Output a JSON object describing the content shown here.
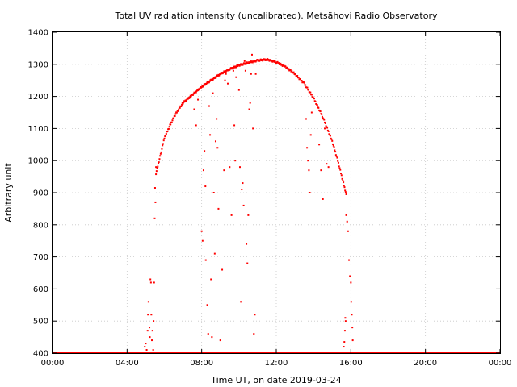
{
  "chart_data": {
    "type": "scatter",
    "title": "Total UV radiation intensity (uncalibrated). Metsähovi Radio Observatory",
    "xlabel": "Time UT, on date 2019-03-24",
    "ylabel": "Arbitrary unit",
    "x_unit": "hours UT",
    "xlim": [
      0,
      24
    ],
    "ylim": [
      400,
      1400
    ],
    "x_ticks": [
      {
        "value": 0,
        "label": "00:00"
      },
      {
        "value": 4,
        "label": "04:00"
      },
      {
        "value": 8,
        "label": "08:00"
      },
      {
        "value": 12,
        "label": "12:00"
      },
      {
        "value": 16,
        "label": "16:00"
      },
      {
        "value": 20,
        "label": "20:00"
      },
      {
        "value": 24,
        "label": "00:00"
      }
    ],
    "y_ticks": [
      400,
      500,
      600,
      700,
      800,
      900,
      1000,
      1100,
      1200,
      1300,
      1400
    ],
    "grid": true,
    "legend": "none",
    "series": [
      {
        "color": "#ff0000",
        "baseline": {
          "x_from": 0,
          "x_to": 24,
          "y": 400
        },
        "envelope": [
          {
            "x": 5.55,
            "y": 960
          },
          {
            "x": 5.8,
            "y": 1020
          },
          {
            "x": 6.0,
            "y": 1070
          },
          {
            "x": 6.3,
            "y": 1110
          },
          {
            "x": 6.6,
            "y": 1145
          },
          {
            "x": 7.0,
            "y": 1180
          },
          {
            "x": 7.5,
            "y": 1205
          },
          {
            "x": 8.0,
            "y": 1230
          },
          {
            "x": 8.5,
            "y": 1250
          },
          {
            "x": 9.0,
            "y": 1270
          },
          {
            "x": 9.5,
            "y": 1285
          },
          {
            "x": 10.0,
            "y": 1297
          },
          {
            "x": 10.5,
            "y": 1305
          },
          {
            "x": 11.0,
            "y": 1312
          },
          {
            "x": 11.5,
            "y": 1315
          },
          {
            "x": 12.0,
            "y": 1307
          },
          {
            "x": 12.5,
            "y": 1292
          },
          {
            "x": 13.0,
            "y": 1270
          },
          {
            "x": 13.5,
            "y": 1240
          },
          {
            "x": 14.0,
            "y": 1195
          },
          {
            "x": 14.5,
            "y": 1135
          },
          {
            "x": 15.0,
            "y": 1060
          },
          {
            "x": 15.3,
            "y": 1000
          },
          {
            "x": 15.6,
            "y": 930
          },
          {
            "x": 15.75,
            "y": 895
          }
        ],
        "scatter": [
          {
            "x": 4.95,
            "y": 420
          },
          {
            "x": 5.0,
            "y": 430
          },
          {
            "x": 5.05,
            "y": 410
          },
          {
            "x": 5.1,
            "y": 470
          },
          {
            "x": 5.12,
            "y": 520
          },
          {
            "x": 5.15,
            "y": 560
          },
          {
            "x": 5.2,
            "y": 480
          },
          {
            "x": 5.22,
            "y": 450
          },
          {
            "x": 5.25,
            "y": 630
          },
          {
            "x": 5.28,
            "y": 620
          },
          {
            "x": 5.3,
            "y": 520
          },
          {
            "x": 5.33,
            "y": 440
          },
          {
            "x": 5.36,
            "y": 470
          },
          {
            "x": 5.4,
            "y": 410
          },
          {
            "x": 5.42,
            "y": 500
          },
          {
            "x": 5.45,
            "y": 620
          },
          {
            "x": 5.48,
            "y": 820
          },
          {
            "x": 5.5,
            "y": 915
          },
          {
            "x": 5.52,
            "y": 870
          },
          {
            "x": 5.55,
            "y": 980
          },
          {
            "x": 7.6,
            "y": 1160
          },
          {
            "x": 7.7,
            "y": 1110
          },
          {
            "x": 7.8,
            "y": 1190
          },
          {
            "x": 8.0,
            "y": 780
          },
          {
            "x": 8.05,
            "y": 750
          },
          {
            "x": 8.1,
            "y": 970
          },
          {
            "x": 8.15,
            "y": 1030
          },
          {
            "x": 8.2,
            "y": 920
          },
          {
            "x": 8.22,
            "y": 690
          },
          {
            "x": 8.3,
            "y": 550
          },
          {
            "x": 8.35,
            "y": 460
          },
          {
            "x": 8.4,
            "y": 1170
          },
          {
            "x": 8.45,
            "y": 1080
          },
          {
            "x": 8.5,
            "y": 630
          },
          {
            "x": 8.55,
            "y": 450
          },
          {
            "x": 8.6,
            "y": 1210
          },
          {
            "x": 8.65,
            "y": 900
          },
          {
            "x": 8.7,
            "y": 710
          },
          {
            "x": 8.75,
            "y": 1060
          },
          {
            "x": 8.8,
            "y": 1130
          },
          {
            "x": 8.85,
            "y": 1040
          },
          {
            "x": 8.9,
            "y": 850
          },
          {
            "x": 9.0,
            "y": 440
          },
          {
            "x": 9.1,
            "y": 660
          },
          {
            "x": 9.2,
            "y": 970
          },
          {
            "x": 9.25,
            "y": 1250
          },
          {
            "x": 9.3,
            "y": 1270
          },
          {
            "x": 9.4,
            "y": 1240
          },
          {
            "x": 9.5,
            "y": 980
          },
          {
            "x": 9.6,
            "y": 830
          },
          {
            "x": 9.7,
            "y": 1280
          },
          {
            "x": 9.75,
            "y": 1110
          },
          {
            "x": 9.8,
            "y": 1000
          },
          {
            "x": 9.85,
            "y": 1260
          },
          {
            "x": 9.9,
            "y": 1295
          },
          {
            "x": 10.0,
            "y": 1220
          },
          {
            "x": 10.05,
            "y": 980
          },
          {
            "x": 10.1,
            "y": 560
          },
          {
            "x": 10.15,
            "y": 910
          },
          {
            "x": 10.2,
            "y": 930
          },
          {
            "x": 10.25,
            "y": 860
          },
          {
            "x": 10.3,
            "y": 1310
          },
          {
            "x": 10.35,
            "y": 1280
          },
          {
            "x": 10.4,
            "y": 740
          },
          {
            "x": 10.45,
            "y": 680
          },
          {
            "x": 10.5,
            "y": 830
          },
          {
            "x": 10.55,
            "y": 1160
          },
          {
            "x": 10.6,
            "y": 1180
          },
          {
            "x": 10.65,
            "y": 1270
          },
          {
            "x": 10.7,
            "y": 1330
          },
          {
            "x": 10.75,
            "y": 1100
          },
          {
            "x": 10.8,
            "y": 460
          },
          {
            "x": 10.85,
            "y": 520
          },
          {
            "x": 10.9,
            "y": 1270
          },
          {
            "x": 13.6,
            "y": 1130
          },
          {
            "x": 13.65,
            "y": 1040
          },
          {
            "x": 13.7,
            "y": 1000
          },
          {
            "x": 13.75,
            "y": 970
          },
          {
            "x": 13.8,
            "y": 900
          },
          {
            "x": 13.85,
            "y": 1080
          },
          {
            "x": 13.9,
            "y": 1150
          },
          {
            "x": 14.3,
            "y": 1050
          },
          {
            "x": 14.4,
            "y": 970
          },
          {
            "x": 14.5,
            "y": 880
          },
          {
            "x": 14.6,
            "y": 1100
          },
          {
            "x": 14.7,
            "y": 990
          },
          {
            "x": 14.8,
            "y": 980
          },
          {
            "x": 15.75,
            "y": 830
          },
          {
            "x": 15.8,
            "y": 810
          },
          {
            "x": 15.85,
            "y": 780
          },
          {
            "x": 15.9,
            "y": 690
          },
          {
            "x": 15.95,
            "y": 640
          },
          {
            "x": 16.0,
            "y": 620
          },
          {
            "x": 16.02,
            "y": 560
          },
          {
            "x": 16.05,
            "y": 520
          },
          {
            "x": 16.08,
            "y": 480
          },
          {
            "x": 16.1,
            "y": 440
          },
          {
            "x": 15.7,
            "y": 510
          },
          {
            "x": 15.72,
            "y": 500
          },
          {
            "x": 15.68,
            "y": 470
          },
          {
            "x": 15.65,
            "y": 435
          },
          {
            "x": 15.62,
            "y": 420
          }
        ]
      }
    ]
  }
}
